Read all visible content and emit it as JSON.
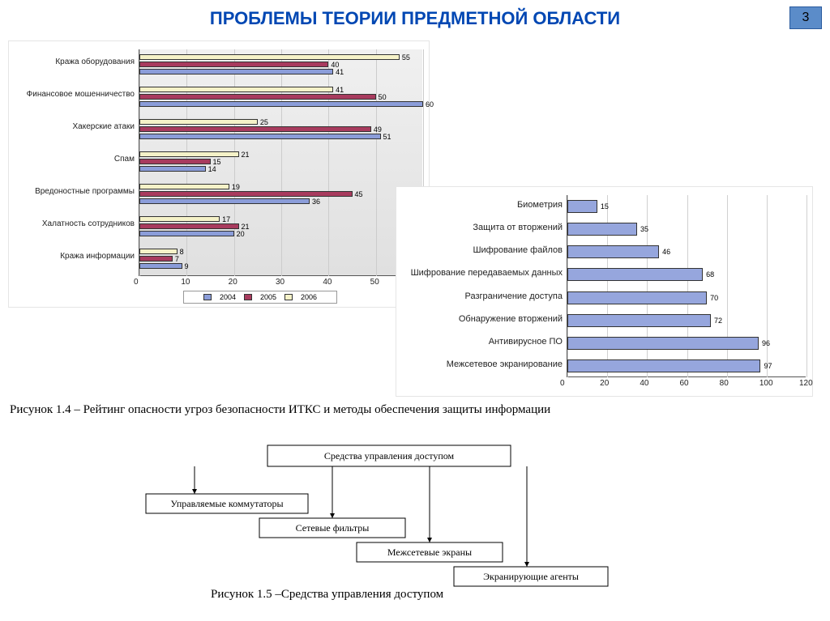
{
  "page": {
    "title": "ПРОБЛЕМЫ ТЕОРИИ ПРЕДМЕТНОЙ ОБЛАСТИ",
    "number": "3"
  },
  "caption1": "Рисунок 1.4 –  Рейтинг опасности угроз безопасности  ИТКС и методы обеспечения защиты информации",
  "caption2": "Рисунок 1.5 –Средства управления доступом",
  "chart1": {
    "type": "bar",
    "orientation": "horizontal",
    "xlim": [
      0,
      60
    ],
    "xtick_step": 10,
    "years": [
      "2004",
      "2005",
      "2006"
    ],
    "colors": {
      "2004": "#8b9dd9",
      "2005": "#a83b5e",
      "2006": "#f5f2c8"
    },
    "border_color": "#333333",
    "grid_color": "#cccccc",
    "label_fontsize": 10,
    "data_fontsize": 9,
    "categories": [
      {
        "label": "Кража оборудования",
        "v2004": 41,
        "v2005": 40,
        "v2006": 55
      },
      {
        "label": "Финансовое мошенничество",
        "v2004": 60,
        "v2005": 50,
        "v2006": 41
      },
      {
        "label": "Хакерские атаки",
        "v2004": 51,
        "v2005": 49,
        "v2006": 25
      },
      {
        "label": "Спам",
        "v2004": 14,
        "v2005": 15,
        "v2006": 21
      },
      {
        "label": "Вредоностные программы",
        "v2004": 36,
        "v2005": 45,
        "v2006": 19
      },
      {
        "label": "Халатность сотрудников",
        "v2004": 20,
        "v2005": 21,
        "v2006": 17
      },
      {
        "label": "Кража информации",
        "v2004": 9,
        "v2005": 7,
        "v2006": 8
      }
    ]
  },
  "chart2": {
    "type": "bar",
    "orientation": "horizontal",
    "xlim": [
      0,
      120
    ],
    "xtick_step": 20,
    "bar_color": "#96a6dd",
    "border_color": "#333333",
    "grid_color": "#d0d0d0",
    "label_fontsize": 11,
    "data_fontsize": 9,
    "categories": [
      {
        "label": "Биометрия",
        "value": 15
      },
      {
        "label": "Защита от вторжений",
        "value": 35
      },
      {
        "label": "Шифрование файлов",
        "value": 46
      },
      {
        "label": "Шифрование передаваемых данных",
        "value": 68
      },
      {
        "label": "Разграничение доступа",
        "value": 70
      },
      {
        "label": "Обнаружение вторжений",
        "value": 72
      },
      {
        "label": "Антивирусное ПО",
        "value": 96
      },
      {
        "label": "Межсетевое экранирование",
        "value": 97
      }
    ]
  },
  "diagram": {
    "root": "Средства управления доступом",
    "children": [
      "Управляемые коммутаторы",
      "Сетевые фильтры",
      "Межсетевые экраны",
      "Экранирующие агенты"
    ],
    "box_fill": "#ffffff",
    "box_stroke": "#000000",
    "arrow_stroke": "#000000",
    "fontsize": 12
  }
}
